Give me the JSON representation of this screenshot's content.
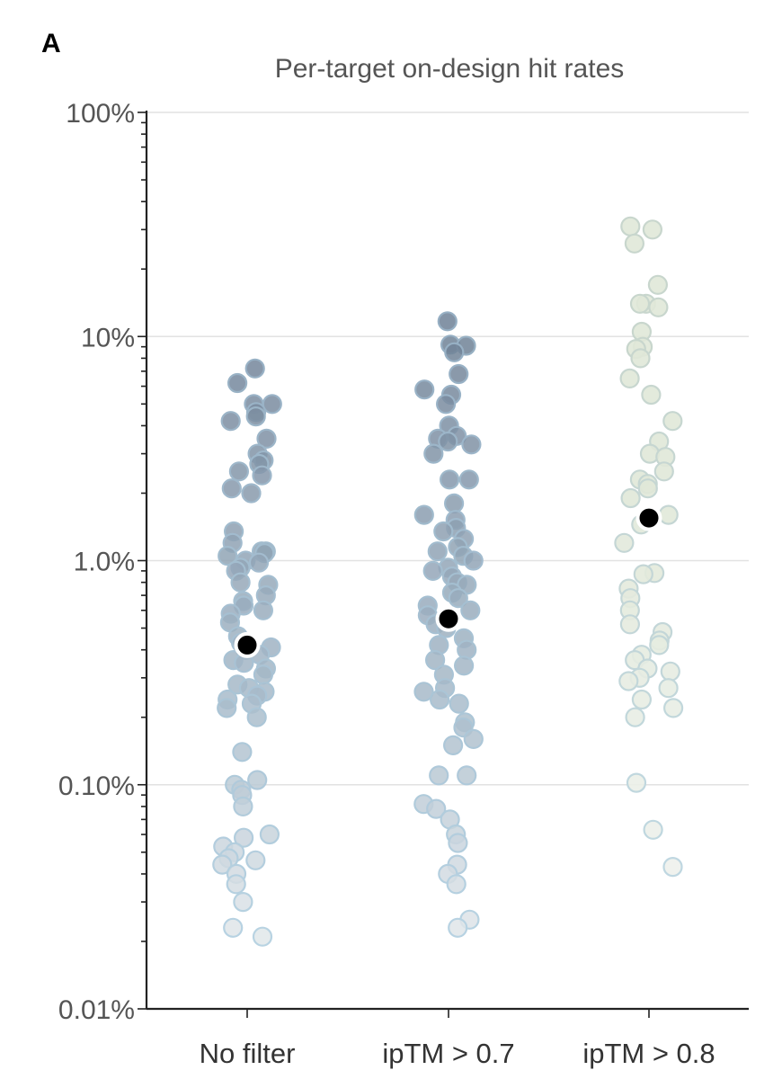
{
  "panel_label": "A",
  "chart_data": {
    "type": "scatter",
    "subtype": "strip-plot",
    "title": "Per-target on-design hit rates",
    "xlabel": "",
    "ylabel": "",
    "yscale": "log",
    "ylim": [
      0.0001,
      1
    ],
    "yticks": [
      {
        "value": 1,
        "label": "100%"
      },
      {
        "value": 0.1,
        "label": "10%"
      },
      {
        "value": 0.01,
        "label": "1.0%"
      },
      {
        "value": 0.001,
        "label": "0.10%"
      },
      {
        "value": 0.0001,
        "label": "0.01%"
      }
    ],
    "grid": true,
    "legend": "none",
    "colors": {
      "high": "#6f8196",
      "mid": "#a9bccb",
      "low_edge": "#bcd7e6",
      "low_fill": "#f3f4f4",
      "pale_green": "#e0e8d8",
      "median_marker": "#000000"
    },
    "categories": [
      "No filter",
      "ipTM > 0.7",
      "ipTM > 0.8"
    ],
    "series": [
      {
        "category": "No filter",
        "values": [
          0.072,
          0.062,
          0.05,
          0.05,
          0.046,
          0.044,
          0.042,
          0.035,
          0.03,
          0.028,
          0.027,
          0.025,
          0.024,
          0.021,
          0.02,
          0.0135,
          0.012,
          0.011,
          0.011,
          0.0108,
          0.0105,
          0.01,
          0.0098,
          0.0093,
          0.009,
          0.008,
          0.0078,
          0.007,
          0.0066,
          0.0063,
          0.006,
          0.0058,
          0.0053,
          0.0046,
          0.0043,
          0.0042,
          0.0041,
          0.004,
          0.0038,
          0.0036,
          0.0035,
          0.0033,
          0.0031,
          0.0028,
          0.0027,
          0.0026,
          0.0025,
          0.0024,
          0.0023,
          0.0022,
          0.002,
          0.0014,
          0.00105,
          0.001,
          0.00095,
          0.0009,
          0.0008,
          0.0006,
          0.00058,
          0.00053,
          0.0005,
          0.00047,
          0.00046,
          0.00044,
          0.0004,
          0.00036,
          0.0003,
          0.00023,
          0.00021
        ],
        "median": 0.0042
      },
      {
        "category": "ipTM > 0.7",
        "values": [
          0.117,
          0.092,
          0.091,
          0.085,
          0.068,
          0.058,
          0.055,
          0.05,
          0.04,
          0.036,
          0.035,
          0.034,
          0.033,
          0.03,
          0.023,
          0.023,
          0.018,
          0.016,
          0.0152,
          0.014,
          0.0135,
          0.0125,
          0.0115,
          0.011,
          0.0105,
          0.01,
          0.0093,
          0.009,
          0.0085,
          0.008,
          0.0078,
          0.0072,
          0.0068,
          0.0063,
          0.006,
          0.0057,
          0.0052,
          0.005,
          0.0045,
          0.0042,
          0.004,
          0.0036,
          0.0034,
          0.0031,
          0.0027,
          0.0026,
          0.0024,
          0.0023,
          0.0019,
          0.0018,
          0.0016,
          0.0015,
          0.0011,
          0.0011,
          0.00082,
          0.00078,
          0.0007,
          0.0006,
          0.00055,
          0.00044,
          0.0004,
          0.00036,
          0.00025,
          0.00023
        ],
        "median": 0.0055
      },
      {
        "category": "ipTM > 0.8",
        "values": [
          0.31,
          0.3,
          0.26,
          0.17,
          0.14,
          0.14,
          0.135,
          0.105,
          0.09,
          0.088,
          0.08,
          0.065,
          0.055,
          0.042,
          0.034,
          0.03,
          0.029,
          0.025,
          0.023,
          0.022,
          0.021,
          0.019,
          0.016,
          0.0145,
          0.012,
          0.0088,
          0.0087,
          0.0075,
          0.0068,
          0.006,
          0.0052,
          0.0048,
          0.0044,
          0.0042,
          0.0038,
          0.0036,
          0.0033,
          0.0032,
          0.003,
          0.0029,
          0.0027,
          0.0024,
          0.0022,
          0.002,
          0.00102,
          0.00063,
          0.00043
        ],
        "median": 0.0155
      }
    ]
  }
}
